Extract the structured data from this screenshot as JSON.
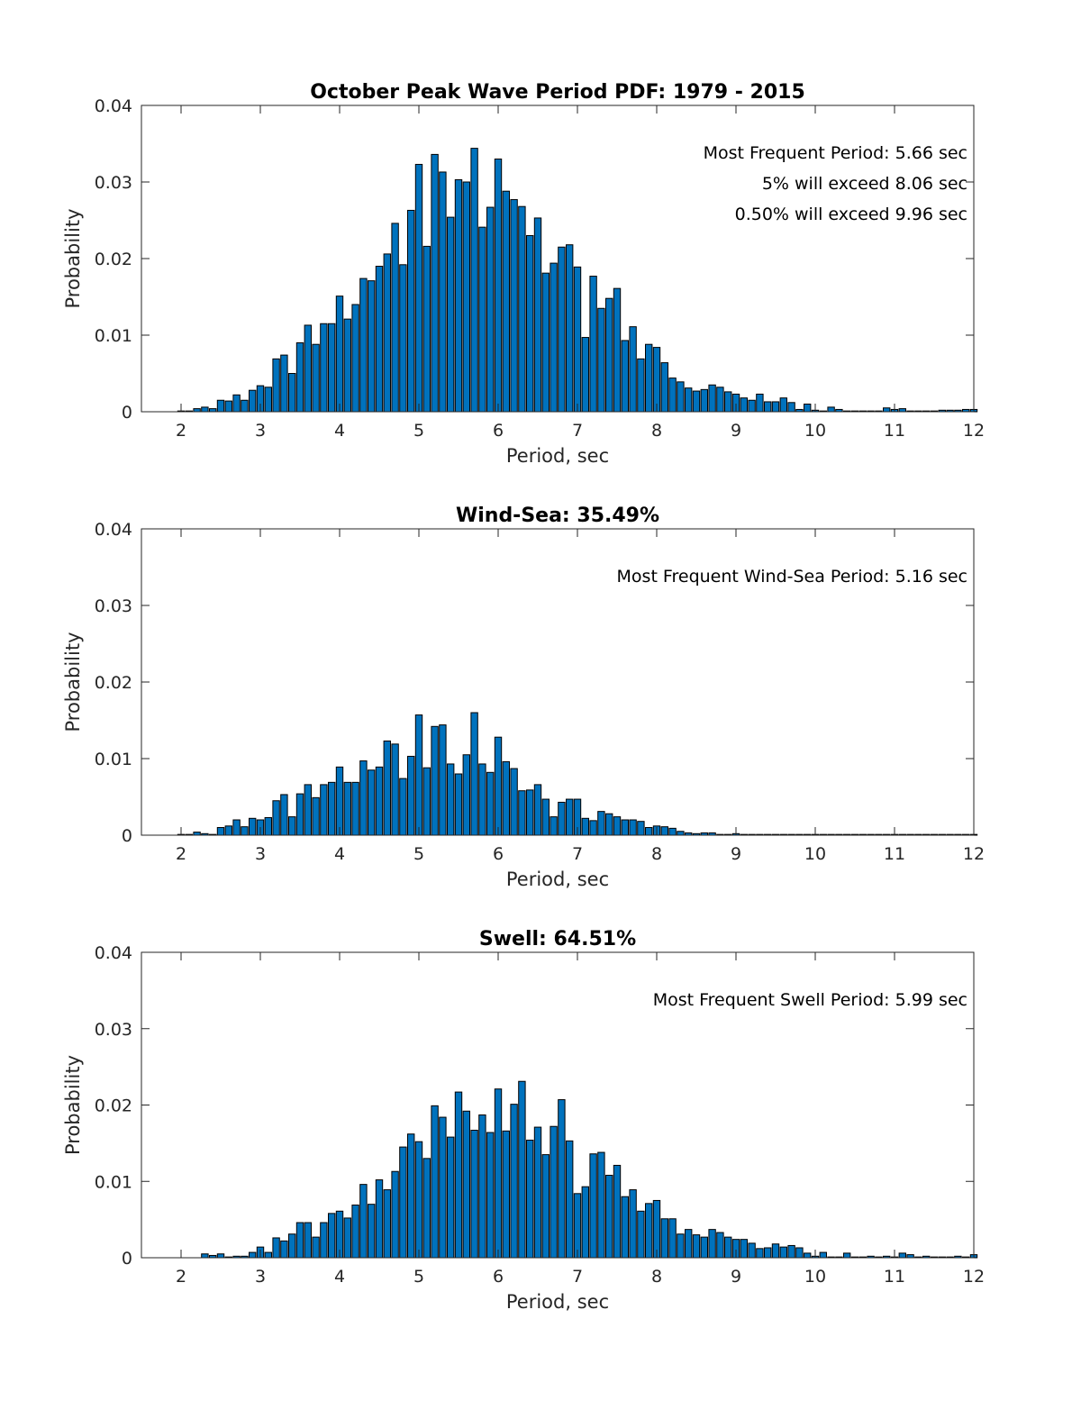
{
  "chart_data": [
    {
      "type": "bar",
      "title": "October Peak Wave Period PDF: 1979 - 2015",
      "xlabel": "Period, sec",
      "ylabel": "Probability",
      "xlim": [
        1.5,
        12
      ],
      "ylim": [
        0,
        0.04
      ],
      "xticks": [
        "2",
        "3",
        "4",
        "5",
        "6",
        "7",
        "8",
        "9",
        "10",
        "11",
        "12"
      ],
      "yticks": [
        "0",
        "0.01",
        "0.02",
        "0.03",
        "0.04"
      ],
      "bar_color": "#0072BD",
      "annotations": [
        "Most Frequent Period: 5.66 sec",
        "5% will exceed 8.06 sec",
        "0.50% will exceed 9.96 sec"
      ],
      "x": [
        2.0,
        2.1,
        2.2,
        2.3,
        2.4,
        2.5,
        2.6,
        2.7,
        2.8,
        2.9,
        3.0,
        3.1,
        3.2,
        3.3,
        3.4,
        3.5,
        3.6,
        3.7,
        3.8,
        3.9,
        4.0,
        4.1,
        4.2,
        4.3,
        4.4,
        4.5,
        4.6,
        4.7,
        4.8,
        4.9,
        5.0,
        5.1,
        5.2,
        5.3,
        5.4,
        5.5,
        5.6,
        5.7,
        5.8,
        5.9,
        6.0,
        6.1,
        6.2,
        6.3,
        6.4,
        6.5,
        6.6,
        6.7,
        6.8,
        6.9,
        7.0,
        7.1,
        7.2,
        7.3,
        7.4,
        7.5,
        7.6,
        7.7,
        7.8,
        7.9,
        8.0,
        8.1,
        8.2,
        8.3,
        8.4,
        8.5,
        8.6,
        8.7,
        8.8,
        8.9,
        9.0,
        9.1,
        9.2,
        9.3,
        9.4,
        9.5,
        9.6,
        9.7,
        9.8,
        9.9,
        10.0,
        10.1,
        10.2,
        10.3,
        10.4,
        10.5,
        10.6,
        10.7,
        10.8,
        10.9,
        11.0,
        11.1,
        11.2,
        11.3,
        11.4,
        11.5,
        11.6,
        11.7,
        11.8,
        11.9,
        12.0
      ],
      "values": [
        0.0001,
        0.0001,
        0.0004,
        0.0006,
        0.0004,
        0.0015,
        0.0014,
        0.0022,
        0.0015,
        0.0028,
        0.0034,
        0.0032,
        0.0069,
        0.0074,
        0.005,
        0.009,
        0.0113,
        0.0088,
        0.0115,
        0.0115,
        0.0151,
        0.0121,
        0.014,
        0.0174,
        0.0171,
        0.019,
        0.0206,
        0.0246,
        0.0192,
        0.0263,
        0.0323,
        0.0216,
        0.0336,
        0.0313,
        0.0254,
        0.0303,
        0.03,
        0.0344,
        0.0241,
        0.0267,
        0.033,
        0.0288,
        0.0277,
        0.0268,
        0.023,
        0.0253,
        0.0181,
        0.0194,
        0.0215,
        0.0218,
        0.0189,
        0.0097,
        0.0177,
        0.0135,
        0.0148,
        0.0161,
        0.0093,
        0.0111,
        0.0069,
        0.0088,
        0.0084,
        0.0064,
        0.0044,
        0.0039,
        0.0031,
        0.0027,
        0.0029,
        0.0035,
        0.0032,
        0.0026,
        0.0023,
        0.0018,
        0.0015,
        0.0023,
        0.0013,
        0.0013,
        0.0018,
        0.0012,
        0.0003,
        0.001,
        0.0002,
        0.0001,
        0.0006,
        0.0003,
        0.0001,
        0.0001,
        0.0001,
        0.0001,
        0.0001,
        0.0005,
        0.0003,
        0.0004,
        0.0001,
        0.0001,
        0.0001,
        0.0001,
        0.0002,
        0.0002,
        0.0002,
        0.0003,
        0.0003
      ]
    },
    {
      "type": "bar",
      "title": "Wind-Sea: 35.49%",
      "xlabel": "Period, sec",
      "ylabel": "Probability",
      "xlim": [
        1.5,
        12
      ],
      "ylim": [
        0,
        0.04
      ],
      "xticks": [
        "2",
        "3",
        "4",
        "5",
        "6",
        "7",
        "8",
        "9",
        "10",
        "11",
        "12"
      ],
      "yticks": [
        "0",
        "0.01",
        "0.02",
        "0.03",
        "0.04"
      ],
      "bar_color": "#0072BD",
      "annotations": [
        "Most Frequent Wind-Sea Period: 5.16 sec"
      ],
      "x": [
        2.0,
        2.1,
        2.2,
        2.3,
        2.4,
        2.5,
        2.6,
        2.7,
        2.8,
        2.9,
        3.0,
        3.1,
        3.2,
        3.3,
        3.4,
        3.5,
        3.6,
        3.7,
        3.8,
        3.9,
        4.0,
        4.1,
        4.2,
        4.3,
        4.4,
        4.5,
        4.6,
        4.7,
        4.8,
        4.9,
        5.0,
        5.1,
        5.2,
        5.3,
        5.4,
        5.5,
        5.6,
        5.7,
        5.8,
        5.9,
        6.0,
        6.1,
        6.2,
        6.3,
        6.4,
        6.5,
        6.6,
        6.7,
        6.8,
        6.9,
        7.0,
        7.1,
        7.2,
        7.3,
        7.4,
        7.5,
        7.6,
        7.7,
        7.8,
        7.9,
        8.0,
        8.1,
        8.2,
        8.3,
        8.4,
        8.5,
        8.6,
        8.7,
        8.8,
        8.9,
        9.0,
        9.1,
        9.2,
        9.3,
        9.4,
        9.5,
        9.6,
        9.7,
        9.8,
        9.9,
        10.0,
        10.1,
        10.2,
        10.3,
        10.4,
        10.5,
        10.6,
        10.7,
        10.8,
        10.9,
        11.0,
        11.1,
        11.2,
        11.3,
        11.4,
        11.5,
        11.6,
        11.7,
        11.8,
        11.9,
        12.0
      ],
      "values": [
        0.0001,
        0.0001,
        0.0004,
        0.0002,
        0.0001,
        0.001,
        0.0012,
        0.002,
        0.0011,
        0.0022,
        0.002,
        0.0023,
        0.0045,
        0.0053,
        0.0024,
        0.0054,
        0.0066,
        0.0049,
        0.0066,
        0.0069,
        0.0089,
        0.0069,
        0.0069,
        0.0097,
        0.0085,
        0.0089,
        0.0123,
        0.0119,
        0.0074,
        0.0103,
        0.0157,
        0.0088,
        0.0142,
        0.0144,
        0.0093,
        0.008,
        0.0105,
        0.016,
        0.0093,
        0.0082,
        0.0128,
        0.0096,
        0.0087,
        0.0058,
        0.0059,
        0.0066,
        0.0047,
        0.0024,
        0.0043,
        0.0047,
        0.0047,
        0.0022,
        0.0019,
        0.0031,
        0.0028,
        0.0024,
        0.002,
        0.002,
        0.0018,
        0.001,
        0.0012,
        0.0011,
        0.0009,
        0.0005,
        0.0003,
        0.0002,
        0.0003,
        0.0003,
        0.0001,
        0.0001,
        0.0002,
        0.0001,
        0.0001,
        0.0001,
        0.0001,
        0.0001,
        0.0001,
        0.0001,
        0.0001,
        0.0001,
        0.0001,
        0.0001,
        0.0001,
        0.0001,
        0.0001,
        0.0001,
        0.0001,
        0.0001,
        0.0001,
        0.0001,
        0.0001,
        0.0001,
        0.0001,
        0.0001,
        0.0001,
        0.0001,
        0.0001,
        0.0001,
        0.0001,
        0.0001,
        0.0001
      ]
    },
    {
      "type": "bar",
      "title": "Swell: 64.51%",
      "xlabel": "Period, sec",
      "ylabel": "Probability",
      "xlim": [
        1.5,
        12
      ],
      "ylim": [
        0,
        0.04
      ],
      "xticks": [
        "2",
        "3",
        "4",
        "5",
        "6",
        "7",
        "8",
        "9",
        "10",
        "11",
        "12"
      ],
      "yticks": [
        "0",
        "0.01",
        "0.02",
        "0.03",
        "0.04"
      ],
      "bar_color": "#0072BD",
      "annotations": [
        "Most Frequent Swell Period: 5.99 sec"
      ],
      "x": [
        2.0,
        2.1,
        2.2,
        2.3,
        2.4,
        2.5,
        2.6,
        2.7,
        2.8,
        2.9,
        3.0,
        3.1,
        3.2,
        3.3,
        3.4,
        3.5,
        3.6,
        3.7,
        3.8,
        3.9,
        4.0,
        4.1,
        4.2,
        4.3,
        4.4,
        4.5,
        4.6,
        4.7,
        4.8,
        4.9,
        5.0,
        5.1,
        5.2,
        5.3,
        5.4,
        5.5,
        5.6,
        5.7,
        5.8,
        5.9,
        6.0,
        6.1,
        6.2,
        6.3,
        6.4,
        6.5,
        6.6,
        6.7,
        6.8,
        6.9,
        7.0,
        7.1,
        7.2,
        7.3,
        7.4,
        7.5,
        7.6,
        7.7,
        7.8,
        7.9,
        8.0,
        8.1,
        8.2,
        8.3,
        8.4,
        8.5,
        8.6,
        8.7,
        8.8,
        8.9,
        9.0,
        9.1,
        9.2,
        9.3,
        9.4,
        9.5,
        9.6,
        9.7,
        9.8,
        9.9,
        10.0,
        10.1,
        10.2,
        10.3,
        10.4,
        10.5,
        10.6,
        10.7,
        10.8,
        10.9,
        11.0,
        11.1,
        11.2,
        11.3,
        11.4,
        11.5,
        11.6,
        11.7,
        11.8,
        11.9,
        12.0
      ],
      "values": [
        0,
        0,
        0,
        0.0005,
        0.0003,
        0.0005,
        0.0001,
        0.0002,
        0.0002,
        0.0007,
        0.0014,
        0.0007,
        0.0026,
        0.0022,
        0.0031,
        0.0046,
        0.0046,
        0.0027,
        0.0046,
        0.0058,
        0.0061,
        0.0052,
        0.0069,
        0.0096,
        0.007,
        0.0102,
        0.0089,
        0.0113,
        0.0145,
        0.0162,
        0.0152,
        0.013,
        0.0199,
        0.0184,
        0.0158,
        0.0217,
        0.0192,
        0.0167,
        0.0187,
        0.0164,
        0.0221,
        0.0166,
        0.0201,
        0.0231,
        0.0154,
        0.0171,
        0.0135,
        0.0172,
        0.0207,
        0.0153,
        0.0084,
        0.0093,
        0.0136,
        0.0138,
        0.0108,
        0.0121,
        0.008,
        0.0089,
        0.0061,
        0.0071,
        0.0075,
        0.0051,
        0.0051,
        0.0031,
        0.0037,
        0.003,
        0.0027,
        0.0037,
        0.0033,
        0.0027,
        0.0024,
        0.0024,
        0.0019,
        0.0012,
        0.0013,
        0.0018,
        0.0014,
        0.0016,
        0.0013,
        0.0006,
        0.0002,
        0.0007,
        0.0001,
        0.0001,
        0.0006,
        0.0001,
        0.0001,
        0.0002,
        0.0001,
        0.0002,
        0.0001,
        0.0006,
        0.0004,
        0.0001,
        0.0002,
        0.0001,
        0.0001,
        0.0001,
        0.0002,
        0.0001,
        0.0004
      ]
    }
  ]
}
